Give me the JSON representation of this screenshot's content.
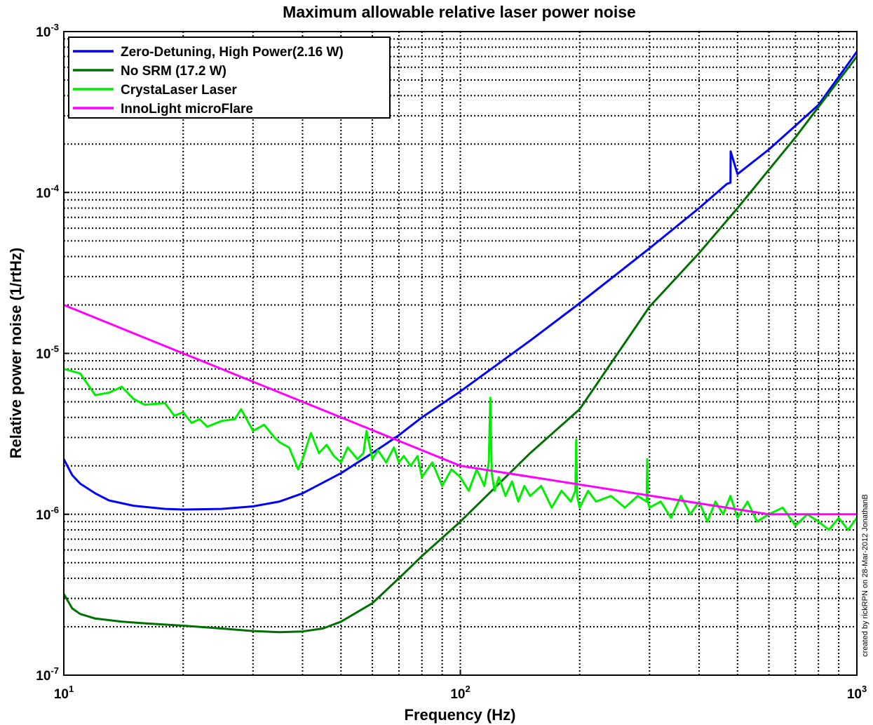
{
  "chart_data": {
    "type": "line",
    "title": "Maximum allowable relative laser power noise",
    "xlabel": "Frequency (Hz)",
    "ylabel": "Relative power noise (1/rtHz)",
    "xscale": "log",
    "yscale": "log",
    "xlim": [
      10,
      1000
    ],
    "ylim": [
      1e-07,
      0.001
    ],
    "grid": "on (dotted, major and minor)",
    "legend_position": "top-left",
    "x_ticks": [
      {
        "base": "10",
        "exp": "1"
      },
      {
        "base": "10",
        "exp": "2"
      },
      {
        "base": "10",
        "exp": "3"
      }
    ],
    "y_ticks": [
      {
        "base": "10",
        "exp": "-7"
      },
      {
        "base": "10",
        "exp": "-6"
      },
      {
        "base": "10",
        "exp": "-5"
      },
      {
        "base": "10",
        "exp": "-4"
      },
      {
        "base": "10",
        "exp": "-3"
      }
    ],
    "annotation": "created by rickRPN on 28-Mar-2012  JonathanB",
    "series": [
      {
        "name": "Zero-Detuning, High Power(2.16 W)",
        "color": "#0000ff",
        "x": [
          10,
          10.5,
          11,
          12,
          13,
          15,
          18,
          20,
          25,
          30,
          35,
          40,
          50,
          60,
          70,
          80,
          100,
          150,
          200,
          300,
          400,
          470,
          480,
          480.5,
          500,
          600,
          700,
          800,
          1000
        ],
        "y": [
          2.2e-06,
          1.75e-06,
          1.55e-06,
          1.35e-06,
          1.22e-06,
          1.13e-06,
          1.08e-06,
          1.07e-06,
          1.08e-06,
          1.12e-06,
          1.2e-06,
          1.35e-06,
          1.8e-06,
          2.4e-06,
          3.1e-06,
          4e-06,
          5.8e-06,
          1.2e-05,
          2.05e-05,
          4.5e-05,
          8e-05,
          0.000113,
          0.000115,
          0.00018,
          0.00013,
          0.000185,
          0.00026,
          0.00035,
          0.00075
        ]
      },
      {
        "name": "No SRM (17.2 W)",
        "color": "#007000",
        "x": [
          10,
          10.5,
          11,
          12,
          14,
          16,
          20,
          25,
          30,
          35,
          40,
          45,
          50,
          60,
          70,
          80,
          100,
          120,
          150,
          200,
          300,
          400,
          500,
          700,
          1000
        ],
        "y": [
          3.2e-07,
          2.6e-07,
          2.4e-07,
          2.25e-07,
          2.15e-07,
          2.1e-07,
          2.03e-07,
          1.95e-07,
          1.88e-07,
          1.85e-07,
          1.87e-07,
          1.95e-07,
          2.15e-07,
          2.8e-07,
          4e-07,
          5.5e-07,
          9e-07,
          1.4e-06,
          2.4e-06,
          4.5e-06,
          1.95e-05,
          4.2e-05,
          8e-05,
          0.00022,
          0.0007
        ]
      },
      {
        "name": "CrystaLaser Laser",
        "color": "#00ee00",
        "x": [
          10,
          11,
          12,
          13,
          14,
          15,
          16,
          18,
          19,
          20,
          21,
          22,
          23,
          25,
          27,
          28,
          30,
          32,
          34,
          35,
          37,
          39,
          40,
          42,
          44,
          46,
          48,
          50,
          52,
          55,
          57,
          58,
          60,
          62,
          65,
          68,
          70,
          72,
          75,
          78,
          80,
          85,
          90,
          95,
          100,
          105,
          110,
          115,
          118,
          119,
          120,
          122,
          125,
          130,
          135,
          140,
          145,
          150,
          160,
          170,
          180,
          190,
          195,
          196,
          197,
          200,
          210,
          220,
          240,
          260,
          280,
          295,
          296,
          297,
          300,
          320,
          340,
          360,
          380,
          400,
          420,
          440,
          460,
          480,
          500,
          530,
          560,
          600,
          650,
          700,
          750,
          800,
          850,
          900,
          950,
          1000
        ],
        "y": [
          8e-06,
          7.5e-06,
          5.5e-06,
          5.7e-06,
          6.2e-06,
          5.2e-06,
          4.8e-06,
          4.9e-06,
          4.1e-06,
          4.3e-06,
          3.7e-06,
          3.9e-06,
          3.5e-06,
          3.8e-06,
          3.9e-06,
          4.5e-06,
          3.3e-06,
          3.6e-06,
          3e-06,
          2.8e-06,
          2.6e-06,
          1.9e-06,
          2.2e-06,
          3.2e-06,
          2.4e-06,
          2.7e-06,
          2.3e-06,
          2.1e-06,
          2.6e-06,
          2.2e-06,
          2.4e-06,
          3.3e-06,
          2.2e-06,
          2.5e-06,
          2.1e-06,
          2.6e-06,
          2.1e-06,
          2.3e-06,
          2e-06,
          2.3e-06,
          1.7e-06,
          2.1e-06,
          1.5e-06,
          1.9e-06,
          1.7e-06,
          1.4e-06,
          1.9e-06,
          1.5e-06,
          2.1e-06,
          5.3e-06,
          1.8e-06,
          1.4e-06,
          1.7e-06,
          1.3e-06,
          1.6e-06,
          1.2e-06,
          1.5e-06,
          1.3e-06,
          1.5e-06,
          1.1e-06,
          1.4e-06,
          1.2e-06,
          1.4e-06,
          2.9e-06,
          1.3e-06,
          1.1e-06,
          1.4e-06,
          1.2e-06,
          1.3e-06,
          1.1e-06,
          1.3e-06,
          1.2e-06,
          2.2e-06,
          1.2e-06,
          1.1e-06,
          1.2e-06,
          9.5e-07,
          1.3e-06,
          1e-06,
          1.2e-06,
          9e-07,
          1.2e-06,
          1e-06,
          1.3e-06,
          9.5e-07,
          1.2e-06,
          9e-07,
          1e-06,
          1.1e-06,
          8.5e-07,
          1e-06,
          9e-07,
          8e-07,
          9.5e-07,
          8e-07,
          9.5e-07
        ]
      },
      {
        "name": "InnoLight microFlare",
        "color": "#ff00ff",
        "x": [
          10,
          100,
          600,
          1000
        ],
        "y": [
          2e-05,
          2e-06,
          1e-06,
          1e-06
        ]
      }
    ]
  }
}
